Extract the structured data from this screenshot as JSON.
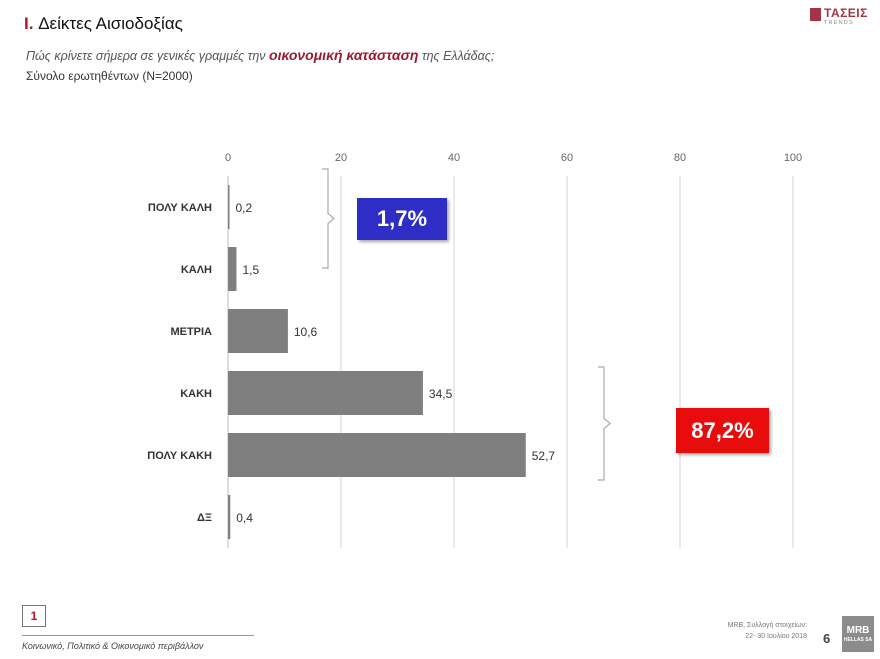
{
  "header": {
    "roman": "I.",
    "title": "Δείκτες Αισιοδοξίας",
    "question_before": "Πώς κρίνετε σήμερα σε γενικές γραμμές την ",
    "question_highlight": "οικονομική κατάσταση",
    "question_after": " της Ελλάδας;",
    "sample": "Σύνολο ερωτηθέντων (N=2000)"
  },
  "logo_top": {
    "name": "ΤΑΣΕΙΣ",
    "sub": "TRENDS"
  },
  "chart_data": {
    "type": "bar",
    "orientation": "horizontal",
    "categories": [
      "ΠΟΛΥ ΚΑΛΗ",
      "ΚΑΛΗ",
      "ΜΕΤΡΙΑ",
      "ΚΑΚΗ",
      "ΠΟΛΥ ΚΑΚΗ",
      "ΔΞ"
    ],
    "values": [
      0.2,
      1.5,
      10.6,
      34.5,
      52.7,
      0.4
    ],
    "value_labels": [
      "0,2",
      "1,5",
      "10,6",
      "34,5",
      "52,7",
      "0,4"
    ],
    "xlim": [
      0,
      100
    ],
    "xticks": [
      0,
      20,
      40,
      60,
      80,
      100
    ],
    "grid": true,
    "axis_position": "top",
    "bar_color": "#7f7f7f",
    "annotations": [
      {
        "text": "1,7%",
        "groups": [
          "ΠΟΛΥ ΚΑΛΗ",
          "ΚΑΛΗ"
        ],
        "color": "#2e2ec7"
      },
      {
        "text": "87,2%",
        "groups": [
          "ΚΑΚΗ",
          "ΠΟΛΥ ΚΑΚΗ"
        ],
        "color": "#e80c0c"
      }
    ]
  },
  "footer": {
    "section_number": "1",
    "left_text": "Κοινωνικό, Πολιτικό & Οικονομικό περιβάλλον",
    "right_line1": "MRB, Συλλογή στοιχείων:",
    "right_line2": "22- 30 Ιουλίου 2018",
    "page_number": "6",
    "logo_main": "MRB",
    "logo_sub": "HELLAS SA"
  }
}
